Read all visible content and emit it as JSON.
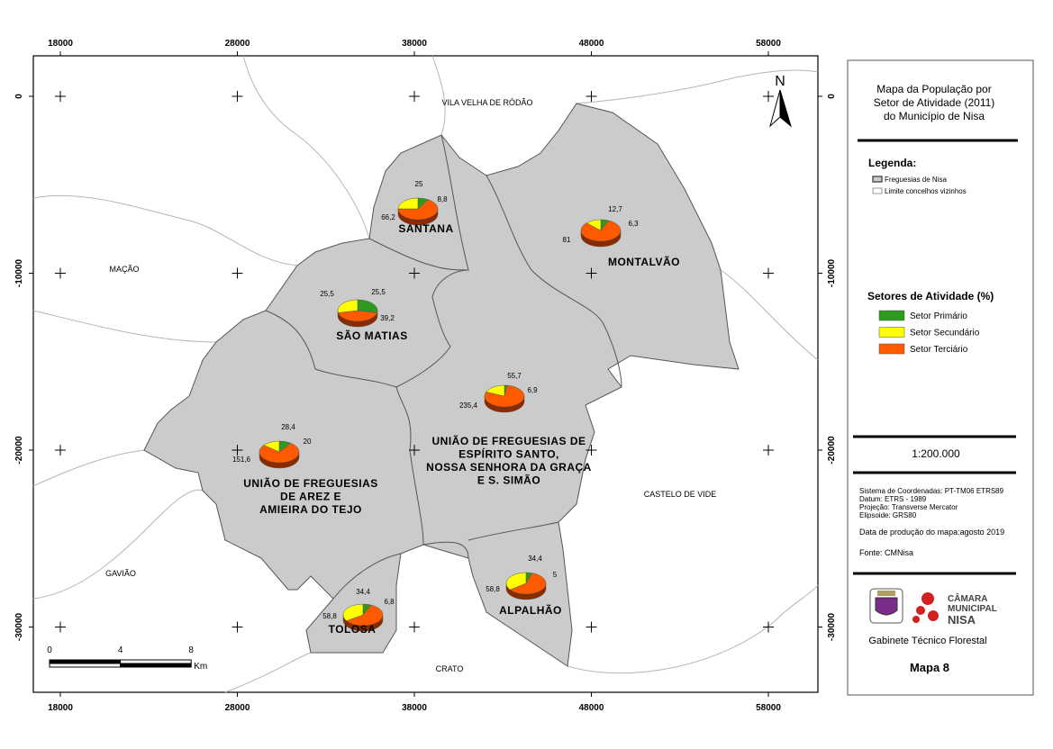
{
  "map": {
    "x_ticks": [
      18000,
      28000,
      38000,
      48000,
      58000
    ],
    "y_ticks": [
      0,
      -10000,
      -20000,
      -30000
    ],
    "north": "N",
    "neighbors": [
      "VILA VELHA DE RÓDÃO",
      "MAÇÃO",
      "GAVIÃO",
      "CRATO",
      "CASTELO DE VIDE"
    ],
    "parishes": [
      {
        "name": [
          "SANTANA"
        ],
        "values": [
          8.8,
          25,
          66.2
        ],
        "value_labels": [
          "8,8",
          "25",
          "66,2"
        ]
      },
      {
        "name": [
          "MONTALVÃO"
        ],
        "values": [
          6.3,
          12.7,
          81
        ],
        "value_labels": [
          "6,3",
          "12,7",
          "81"
        ]
      },
      {
        "name": [
          "SÃO MATIAS"
        ],
        "values": [
          25.5,
          25.5,
          39.2
        ],
        "value_labels": [
          "25,5",
          "25,5",
          "39,2"
        ]
      },
      {
        "name": [
          "UNIÃO DE FREGUESIAS DE",
          "ESPÍRITO SANTO,",
          "NOSSA SENHORA DA GRAÇA",
          "E S. SIMÃO"
        ],
        "values": [
          6.9,
          55.7,
          235.4
        ],
        "value_labels": [
          "6,9",
          "55,7",
          "235,4"
        ]
      },
      {
        "name": [
          "UNIÃO DE FREGUESIAS",
          "DE AREZ E",
          "AMIEIRA DO TEJO"
        ],
        "values": [
          20,
          28.4,
          151.6
        ],
        "value_labels": [
          "20",
          "28,4",
          "151,6"
        ]
      },
      {
        "name": [
          "ALPALHÃO"
        ],
        "values": [
          5,
          34.4,
          58.8
        ],
        "value_labels": [
          "5",
          "34,4",
          "58,8"
        ]
      },
      {
        "name": [
          "TOLOSA"
        ],
        "values": [
          6.8,
          34.4,
          58.8
        ],
        "value_labels": [
          "6,8",
          "34,4",
          "58,8"
        ]
      }
    ],
    "scale_bar": {
      "ticks": [
        0,
        4,
        8
      ],
      "unit": "Km"
    }
  },
  "panel": {
    "title": [
      "Mapa da População por",
      "Setor de Atividade (2011)",
      "do Município de Nisa"
    ],
    "legend_title": "Legenda:",
    "legend_items": [
      "Freguesias de Nisa",
      "Limite concelhos vizinhos"
    ],
    "sectors_title": "Setores de Atividade (%)",
    "sectors": [
      {
        "name": "Setor Primário",
        "color": "#2e9a1f"
      },
      {
        "name": "Setor Secundário",
        "color": "#ffff00"
      },
      {
        "name": "Setor Terciário",
        "color": "#ff5a00"
      }
    ],
    "scale": "1:200.000",
    "info": [
      "Sistema de Coordenadas: PT-TM06 ETRS89",
      "Datum:  ETRS - 1989",
      "Projeção: Transverse Mercator",
      "Elipsoide: GRS80"
    ],
    "date": "Data de produção do mapa:agosto 2019",
    "source": "Fonte: CMNisa",
    "logo": [
      "CÂMARA",
      "MUNICIPAL",
      "NISA"
    ],
    "office": "Gabinete Técnico Florestal",
    "map_number": "Mapa 8"
  }
}
